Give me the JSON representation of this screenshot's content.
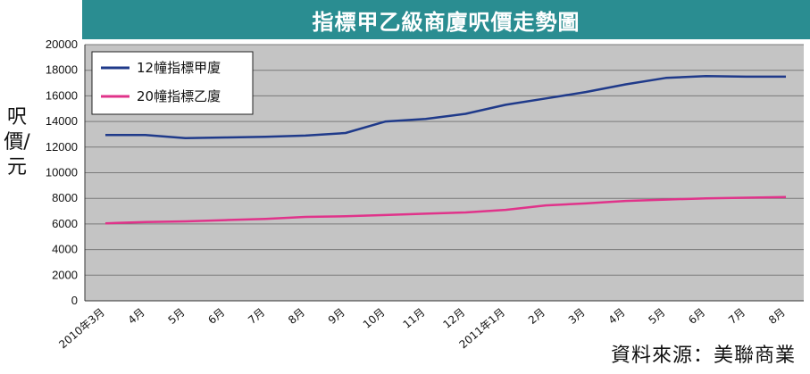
{
  "chart_data": {
    "type": "line",
    "title": "指標甲乙級商廈呎價走勢圖",
    "ylabel": "呎價/元",
    "xlabel": "",
    "ylim": [
      0,
      20000
    ],
    "yticks": [
      "0",
      "2000",
      "4000",
      "6000",
      "8000",
      "10000",
      "12000",
      "14000",
      "16000",
      "18000",
      "20000"
    ],
    "categories": [
      "2010年3月",
      "4月",
      "5月",
      "6月",
      "7月",
      "8月",
      "9月",
      "10月",
      "11月",
      "12月",
      "2011年1月",
      "2月",
      "3月",
      "4月",
      "5月",
      "6月",
      "7月",
      "8月"
    ],
    "series": [
      {
        "name": "12幢指標甲廈",
        "color": "#1f3a8a",
        "values": [
          12950,
          12950,
          12700,
          12750,
          12800,
          12900,
          13100,
          14000,
          14200,
          14600,
          15300,
          15800,
          16300,
          16900,
          17400,
          17550,
          17500,
          17500
        ]
      },
      {
        "name": "20幢指標乙廈",
        "color": "#e0338a",
        "values": [
          6050,
          6150,
          6200,
          6300,
          6400,
          6550,
          6600,
          6700,
          6800,
          6900,
          7100,
          7450,
          7600,
          7800,
          7900,
          8000,
          8050,
          8100
        ]
      }
    ],
    "grid": true,
    "legend": "top-left"
  },
  "source": "資料來源：美聯商業",
  "colors": {
    "title_bar": "#2a8d91",
    "plot_bg": "#c4c4c4"
  }
}
